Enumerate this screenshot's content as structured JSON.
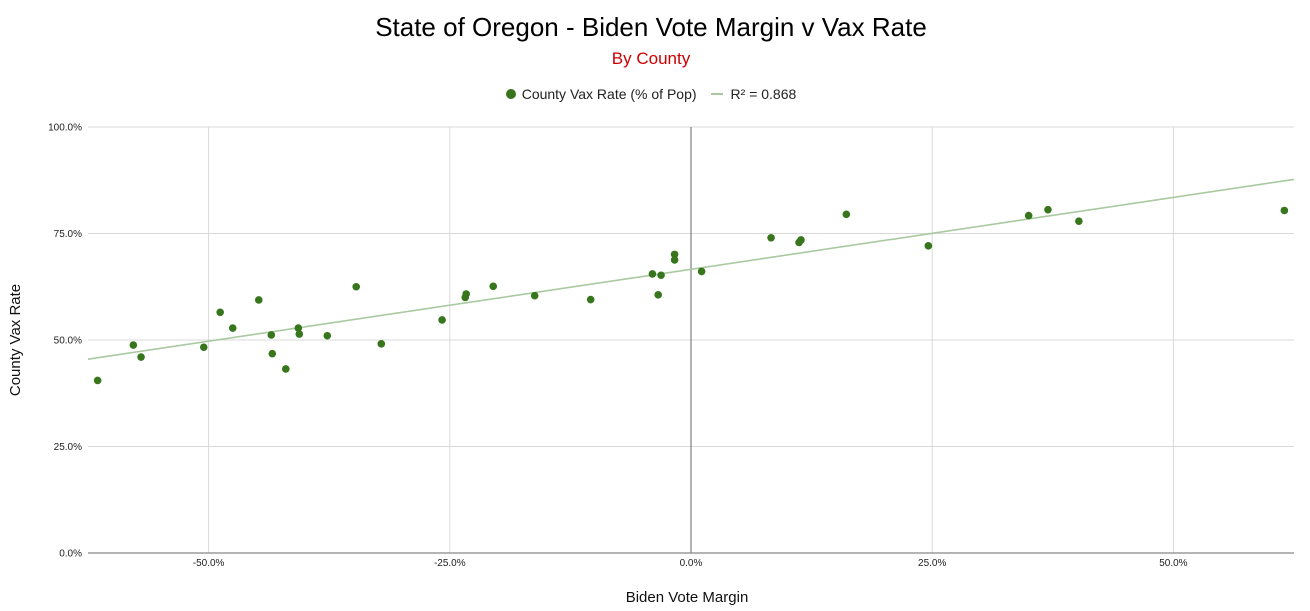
{
  "chart_data": {
    "type": "scatter",
    "title": "State of Oregon - Biden Vote Margin v Vax Rate",
    "subtitle": "By County",
    "xlabel": "Biden Vote Margin",
    "ylabel": "County Vax Rate",
    "xlim": [
      -62.5,
      62.5
    ],
    "ylim": [
      0,
      100
    ],
    "x_ticks": [
      -50,
      -25,
      0,
      25,
      50
    ],
    "x_tick_labels": [
      "-50.0%",
      "-25.0%",
      "0.0%",
      "25.0%",
      "50.0%"
    ],
    "y_ticks": [
      0,
      25,
      50,
      75,
      100
    ],
    "y_tick_labels": [
      "0.0%",
      "25.0%",
      "50.0%",
      "75.0%",
      "100.0%"
    ],
    "grid": true,
    "legend_position": "top",
    "series": [
      {
        "name": "County Vax Rate (% of Pop)",
        "color": "#38761d",
        "points": [
          [
            -61.5,
            40.5
          ],
          [
            -57.8,
            48.8
          ],
          [
            -57.0,
            46.0
          ],
          [
            -50.5,
            48.3
          ],
          [
            -48.8,
            56.5
          ],
          [
            -47.5,
            52.8
          ],
          [
            -44.8,
            59.4
          ],
          [
            -43.5,
            51.2
          ],
          [
            -43.4,
            46.8
          ],
          [
            -42.0,
            43.2
          ],
          [
            -40.7,
            52.8
          ],
          [
            -40.6,
            51.4
          ],
          [
            -37.7,
            51.0
          ],
          [
            -34.7,
            62.5
          ],
          [
            -32.1,
            49.1
          ],
          [
            -25.8,
            54.7
          ],
          [
            -23.4,
            60.0
          ],
          [
            -23.3,
            60.8
          ],
          [
            -20.5,
            62.6
          ],
          [
            -16.2,
            60.4
          ],
          [
            -10.4,
            59.5
          ],
          [
            -4.0,
            65.5
          ],
          [
            -3.4,
            60.6
          ],
          [
            -3.1,
            65.2
          ],
          [
            -1.7,
            68.8
          ],
          [
            -1.7,
            70.1
          ],
          [
            1.1,
            66.1
          ],
          [
            8.3,
            74.0
          ],
          [
            11.2,
            72.9
          ],
          [
            11.4,
            73.5
          ],
          [
            16.1,
            79.5
          ],
          [
            24.6,
            72.1
          ],
          [
            35.0,
            79.2
          ],
          [
            37.0,
            80.6
          ],
          [
            40.2,
            77.9
          ],
          [
            61.5,
            80.4
          ]
        ]
      }
    ],
    "trendline": {
      "label": "R² = 0.868",
      "color": "#a9c9a0",
      "start": [
        -62.5,
        45.5
      ],
      "end": [
        62.5,
        87.7
      ]
    }
  },
  "colors": {
    "subtitle": "#cc0000",
    "grid": "#d9d9d9",
    "axis": "#888888"
  }
}
